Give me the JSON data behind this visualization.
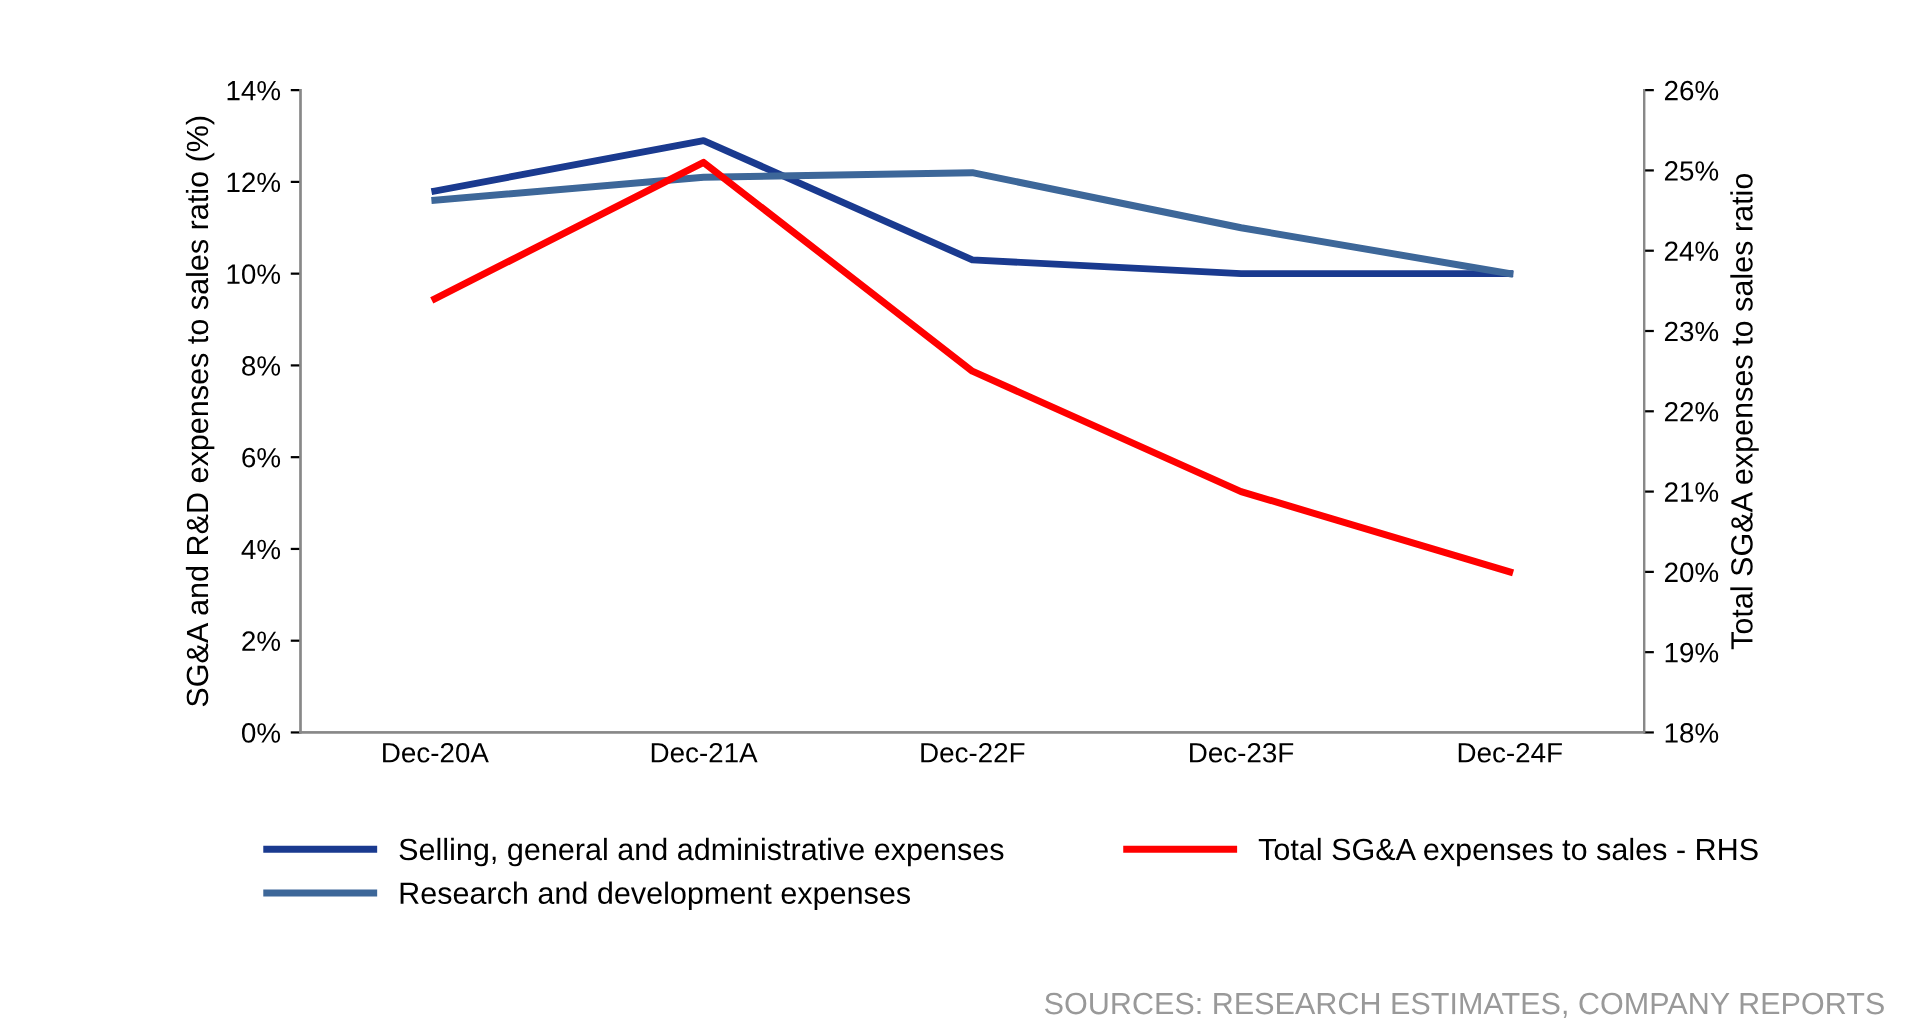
{
  "chart_data": {
    "type": "line",
    "categories": [
      "Dec-20A",
      "Dec-21A",
      "Dec-22F",
      "Dec-23F",
      "Dec-24F"
    ],
    "series": [
      {
        "name": "Selling, general and administrative expenses",
        "color": "#1a3a8f",
        "values": [
          11.8,
          12.9,
          10.3,
          10.0,
          10.0
        ]
      },
      {
        "name": "Research and development expenses",
        "color": "#3d6799",
        "values": [
          11.6,
          12.1,
          12.2,
          11.0,
          10.0
        ]
      },
      {
        "name": "Total SG&A expenses to sales - RHS",
        "color": "#ff0000",
        "axis": "y2",
        "values": [
          23.4,
          25.1,
          22.5,
          21.0,
          20.0
        ]
      }
    ],
    "ylabel": "SG&A and R&D expenses to sales ratio (%)",
    "y2label": "Total SG&A expenses to sales ratio",
    "ylim": [
      0,
      14
    ],
    "yticks": [
      {
        "value": 0,
        "label": "0%"
      },
      {
        "value": 2,
        "label": "2%"
      },
      {
        "value": 4,
        "label": "4%"
      },
      {
        "value": 6,
        "label": "6%"
      },
      {
        "value": 8,
        "label": "8%"
      },
      {
        "value": 10,
        "label": "10%"
      },
      {
        "value": 12,
        "label": "12%"
      },
      {
        "value": 14,
        "label": "14%"
      }
    ],
    "y2lim": [
      18,
      26
    ],
    "y2ticks": [
      {
        "value": 18,
        "label": "18%"
      },
      {
        "value": 19,
        "label": "19%"
      },
      {
        "value": 20,
        "label": "20%"
      },
      {
        "value": 21,
        "label": "21%"
      },
      {
        "value": 22,
        "label": "22%"
      },
      {
        "value": 23,
        "label": "23%"
      },
      {
        "value": 24,
        "label": "24%"
      },
      {
        "value": 25,
        "label": "25%"
      },
      {
        "value": 26,
        "label": "26%"
      }
    ],
    "legend": "bottom",
    "grid": false,
    "marker": "none",
    "line_style": "solid",
    "annotations": [
      "SOURCES: RESEARCH ESTIMATES, COMPANY REPORTS"
    ]
  }
}
